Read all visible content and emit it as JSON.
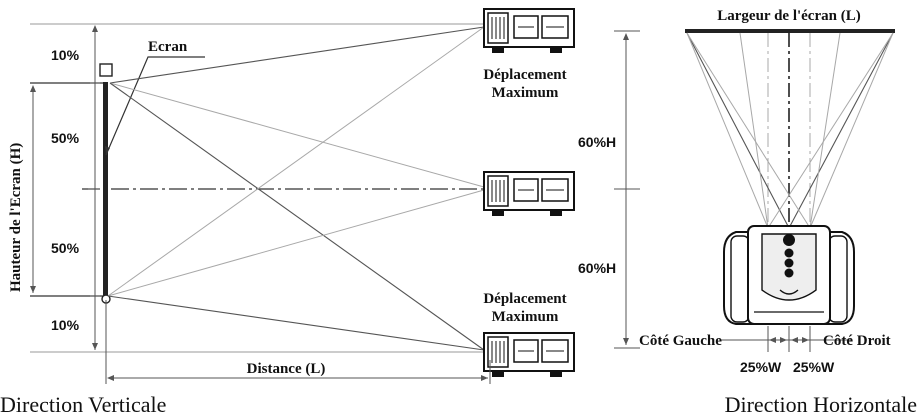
{
  "vertical": {
    "title": "Direction Verticale",
    "screen_label": "Ecran",
    "height_label": "Hauteur de l'Ecran (H)",
    "pct_top": "10%",
    "pct_upper": "50%",
    "pct_lower": "50%",
    "pct_bottom": "10%",
    "max_shift_top_line1": "Déplacement",
    "max_shift_top_line2": "Maximum",
    "max_shift_bottom_line1": "Déplacement",
    "max_shift_bottom_line2": "Maximum",
    "distance_label": "Distance (L)"
  },
  "horizontal": {
    "title": "Direction Horizontale",
    "screen_width_label": "Largeur de l'écran (L)",
    "pct_upper": "60%H",
    "pct_lower": "60%H",
    "left_side_label": "Côté Gauche",
    "right_side_label": "Côté Droit",
    "shift_left": "25%W",
    "shift_right": "25%W"
  }
}
